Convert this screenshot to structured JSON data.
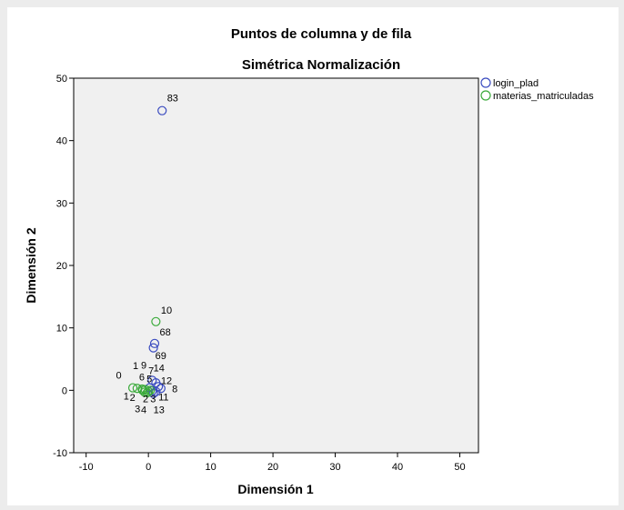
{
  "chart_data": {
    "type": "scatter",
    "title": "Puntos de columna y de fila",
    "subtitle": "Simétrica Normalización",
    "xlabel": "Dimensión 1",
    "ylabel": "Dimensión 2",
    "xlim": [
      -12,
      53
    ],
    "ylim": [
      -10,
      50
    ],
    "xticks": [
      "-10",
      "0",
      "10",
      "20",
      "30",
      "40",
      "50"
    ],
    "yticks": [
      "-10",
      "0",
      "10",
      "20",
      "30",
      "40",
      "50"
    ],
    "grid": false,
    "legend_position": "top-right, outside plot",
    "series": [
      {
        "name": "login_plad",
        "color": "#3b4cc0",
        "points": [
          {
            "label": "83",
            "x": 2.2,
            "y": 44.8
          },
          {
            "label": "68",
            "x": 1.0,
            "y": 7.5
          },
          {
            "label": "69",
            "x": 0.8,
            "y": 6.8
          },
          {
            "label": "7",
            "x": 0.6,
            "y": 1.6
          },
          {
            "label": "14",
            "x": 1.2,
            "y": 1.2
          },
          {
            "label": "12",
            "x": 1.6,
            "y": 0.6
          },
          {
            "label": "8",
            "x": 2.0,
            "y": 0.3
          },
          {
            "label": "11",
            "x": 1.2,
            "y": -0.2
          },
          {
            "label": "13",
            "x": 0.8,
            "y": -0.5
          },
          {
            "label": "",
            "x": 0.2,
            "y": 0.4
          },
          {
            "label": "",
            "x": 0.6,
            "y": -0.1
          }
        ]
      },
      {
        "name": "materias_matriculadas",
        "color": "#3aaa3a",
        "points": [
          {
            "label": "10",
            "x": 1.2,
            "y": 11.0
          },
          {
            "label": "0",
            "x": -2.5,
            "y": 0.4
          },
          {
            "label": "1",
            "x": -1.8,
            "y": 0.3
          },
          {
            "label": "9",
            "x": -1.0,
            "y": 0.2
          },
          {
            "label": "6",
            "x": -0.9,
            "y": 0.0
          },
          {
            "label": "5",
            "x": -0.5,
            "y": 0.1
          },
          {
            "label": "2",
            "x": -0.6,
            "y": -0.3
          },
          {
            "label": "3",
            "x": -0.2,
            "y": -0.4
          },
          {
            "label": "4",
            "x": 0.0,
            "y": -0.2
          },
          {
            "label": "",
            "x": 0.3,
            "y": 0.0
          }
        ]
      }
    ],
    "point_labels": [
      {
        "text": "83",
        "x": 3.0,
        "y": 46.3
      },
      {
        "text": "10",
        "x": 2.0,
        "y": 12.3
      },
      {
        "text": "68",
        "x": 1.8,
        "y": 8.8
      },
      {
        "text": "69",
        "x": 1.1,
        "y": 5.0
      },
      {
        "text": "0",
        "x": -5.2,
        "y": 1.9
      },
      {
        "text": "1",
        "x": -2.5,
        "y": 3.4
      },
      {
        "text": "9",
        "x": -1.2,
        "y": 3.5
      },
      {
        "text": "7",
        "x": 0.0,
        "y": 2.6
      },
      {
        "text": "14",
        "x": 0.8,
        "y": 3.0
      },
      {
        "text": "6",
        "x": -1.5,
        "y": 1.6
      },
      {
        "text": "5",
        "x": -0.3,
        "y": 1.3
      },
      {
        "text": "12",
        "x": 2.0,
        "y": 1.0
      },
      {
        "text": "8",
        "x": 3.8,
        "y": -0.3
      },
      {
        "text": "1",
        "x": -4.0,
        "y": -1.5
      },
      {
        "text": "2",
        "x": -3.0,
        "y": -1.7
      },
      {
        "text": "2",
        "x": -0.9,
        "y": -1.9
      },
      {
        "text": "3",
        "x": 0.3,
        "y": -1.9
      },
      {
        "text": "11",
        "x": 1.6,
        "y": -1.6
      },
      {
        "text": "3",
        "x": -2.2,
        "y": -3.5
      },
      {
        "text": "4",
        "x": -1.2,
        "y": -3.7
      },
      {
        "text": "13",
        "x": 0.8,
        "y": -3.7
      }
    ]
  }
}
